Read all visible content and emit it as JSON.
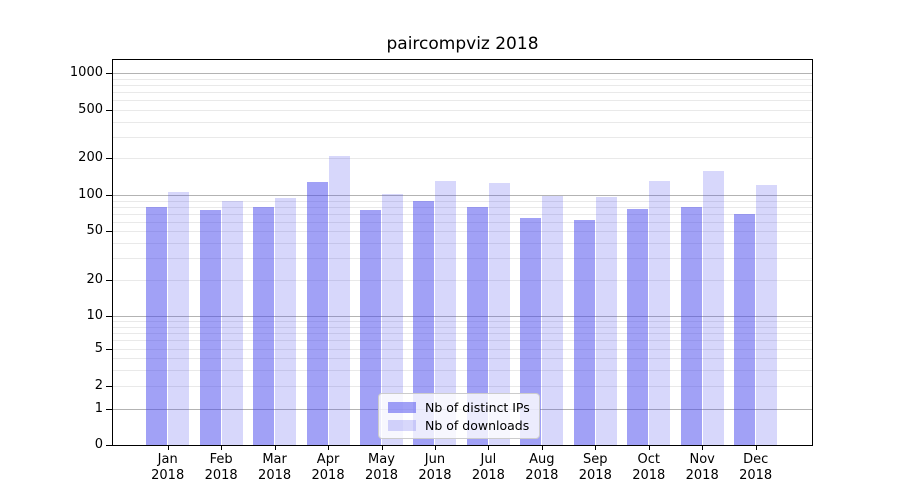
{
  "chart_data": {
    "type": "bar",
    "title": "paircompviz 2018",
    "categories": [
      "Jan",
      "Feb",
      "Mar",
      "Apr",
      "May",
      "Jun",
      "Jul",
      "Aug",
      "Sep",
      "Oct",
      "Nov",
      "Dec"
    ],
    "xtick_year": "2018",
    "yscale": "symlog",
    "yticks": [
      0,
      1,
      2,
      5,
      10,
      20,
      50,
      100,
      200,
      500,
      1000
    ],
    "ylim": [
      0,
      1300
    ],
    "grid": true,
    "legend_position": "lower center",
    "series": [
      {
        "name": "Nb of distinct IPs",
        "fill": "rgba(68,68,238,0.50)",
        "values": [
          79,
          75,
          80,
          128,
          75,
          90,
          79,
          65,
          62,
          77,
          80,
          70
        ]
      },
      {
        "name": "Nb of downloads",
        "fill": "rgba(68,68,238,0.21)",
        "values": [
          106,
          90,
          95,
          210,
          101,
          131,
          125,
          99,
          97,
          130,
          157,
          120
        ]
      }
    ]
  },
  "colors": {
    "background": "#ffffff",
    "spine": "#000000",
    "grid_major": "#b3b3b3",
    "grid_minor": "#e9e9e9",
    "legend_border": "#cccccc",
    "legend_background": "rgba(255,255,255,0.8)",
    "text": "#000000"
  }
}
